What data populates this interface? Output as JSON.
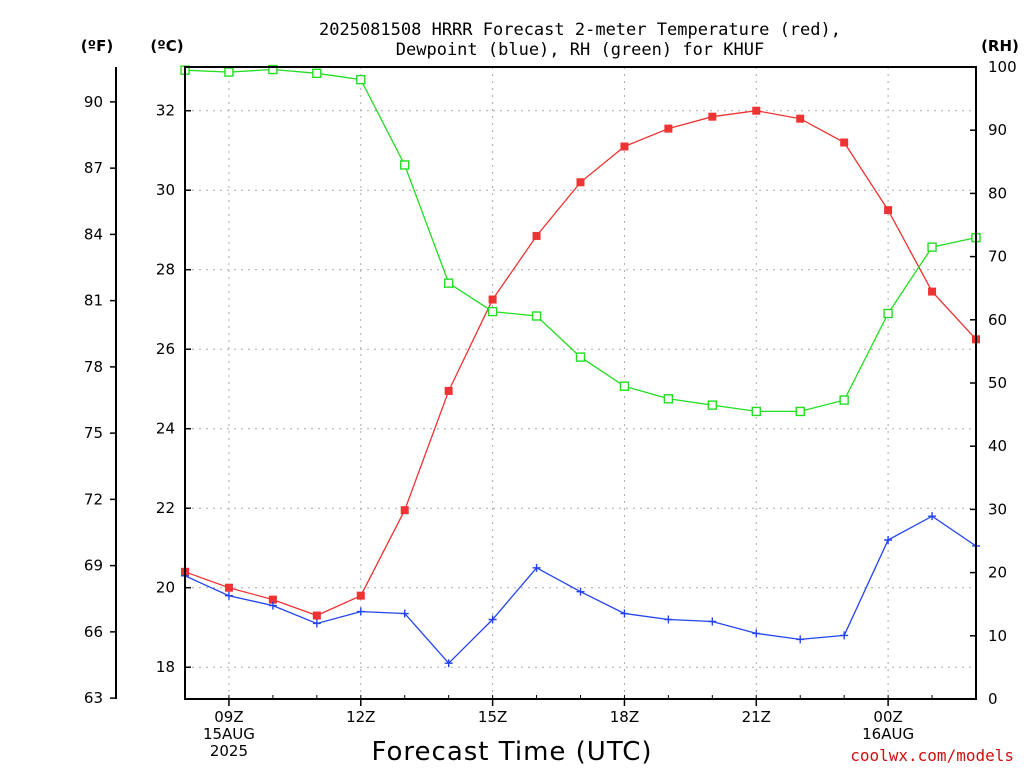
{
  "chart_data": {
    "type": "line",
    "title_line1": "2025081508 HRRR Forecast 2-meter Temperature (red),",
    "title_line2": "Dewpoint (blue), RH (green) for KHUF",
    "xlabel": "Forecast Time (UTC)",
    "credit": "coolwx.com/models",
    "units": {
      "fahrenheit": "(ºF)",
      "celsius": "(ºC)",
      "rh": "(RH)"
    },
    "celsius_range": [
      17.2,
      33.1
    ],
    "fahrenheit_range": [
      62.96,
      91.58
    ],
    "rh_range": [
      0,
      100
    ],
    "grid": true,
    "celsius_ticks": [
      18,
      20,
      22,
      24,
      26,
      28,
      30,
      32
    ],
    "fahrenheit_ticks": [
      63,
      66,
      69,
      72,
      75,
      78,
      81,
      84,
      87,
      90
    ],
    "rh_ticks": [
      0,
      10,
      20,
      30,
      40,
      50,
      60,
      70,
      80,
      90,
      100
    ],
    "x_hours": [
      8,
      9,
      10,
      11,
      12,
      13,
      14,
      15,
      16,
      17,
      18,
      19,
      20,
      21,
      22,
      23,
      24,
      25,
      26
    ],
    "x_ticks": [
      {
        "hour": 9,
        "lines": [
          "09Z",
          "15AUG",
          "2025"
        ]
      },
      {
        "hour": 12,
        "lines": [
          "12Z"
        ]
      },
      {
        "hour": 15,
        "lines": [
          "15Z"
        ]
      },
      {
        "hour": 18,
        "lines": [
          "18Z"
        ]
      },
      {
        "hour": 21,
        "lines": [
          "21Z"
        ]
      },
      {
        "hour": 24,
        "lines": [
          "00Z",
          "16AUG"
        ]
      }
    ],
    "series": [
      {
        "name": "Temperature",
        "axis": "celsius",
        "color": "#ee3333",
        "marker": "filled-square",
        "values": [
          20.4,
          20.0,
          19.7,
          19.3,
          19.8,
          21.95,
          24.95,
          27.25,
          28.85,
          30.2,
          31.1,
          31.55,
          31.85,
          32.0,
          31.8,
          31.2,
          29.5,
          27.45,
          26.25
        ]
      },
      {
        "name": "Dewpoint",
        "axis": "celsius",
        "color": "#2244ee",
        "marker": "plus",
        "values": [
          20.3,
          19.8,
          19.55,
          19.1,
          19.4,
          19.35,
          18.1,
          19.2,
          20.5,
          19.9,
          19.35,
          19.2,
          19.15,
          18.85,
          18.7,
          18.8,
          21.2,
          21.8,
          21.05
        ]
      },
      {
        "name": "RH",
        "axis": "rh",
        "color": "#22dd22",
        "marker": "open-square",
        "values": [
          99.5,
          99.2,
          99.6,
          99.0,
          98.0,
          84.5,
          65.8,
          61.3,
          60.6,
          54.1,
          49.5,
          47.5,
          46.5,
          45.5,
          45.5,
          47.3,
          61.0,
          71.5,
          73.0
        ]
      }
    ]
  }
}
